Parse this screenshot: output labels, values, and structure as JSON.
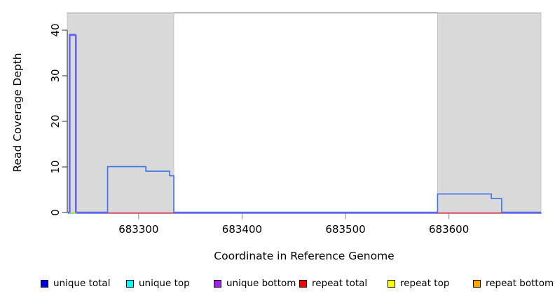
{
  "chart_data": {
    "type": "line",
    "title": "",
    "xlabel": "Coordinate in Reference Genome",
    "ylabel": "Read Coverage Depth",
    "xlim": [
      683231,
      683689
    ],
    "ylim": [
      0,
      44
    ],
    "xticks": [
      683300,
      683400,
      683500,
      683600
    ],
    "yticks": [
      0,
      10,
      20,
      30,
      40
    ],
    "grid": false,
    "legend_position": "bottom",
    "shaded_regions": [
      {
        "x0": 683231,
        "x1": 683334,
        "fill": "#d9d9d9"
      },
      {
        "x0": 683589,
        "x1": 683689,
        "fill": "#d9d9d9"
      }
    ],
    "plot_box_top_segment": {
      "x0": 683334,
      "x1": 683589,
      "color": "#7a7a7a"
    },
    "series": [
      {
        "name": "unique total",
        "color": "#3c74e4",
        "points": [
          [
            683231,
            0
          ],
          [
            683233,
            0
          ],
          [
            683233,
            39
          ],
          [
            683239,
            39
          ],
          [
            683239,
            0
          ],
          [
            683270,
            0
          ],
          [
            683270,
            10
          ],
          [
            683307,
            10
          ],
          [
            683307,
            9
          ],
          [
            683330,
            9
          ],
          [
            683330,
            8
          ],
          [
            683334,
            8
          ],
          [
            683334,
            0
          ],
          [
            683589,
            0
          ],
          [
            683589,
            4
          ],
          [
            683641,
            4
          ],
          [
            683641,
            3
          ],
          [
            683651,
            3
          ],
          [
            683651,
            0
          ],
          [
            683689,
            0
          ]
        ]
      },
      {
        "name": "unique bottom",
        "color": "#7a5cf0",
        "points": [
          [
            683231,
            0
          ],
          [
            683233,
            0
          ],
          [
            683233,
            39
          ],
          [
            683239,
            39
          ],
          [
            683239,
            0
          ],
          [
            683689,
            0
          ]
        ]
      },
      {
        "name": "repeat total",
        "color": "#e84545",
        "segments": [
          [
            [
              683270,
              0
            ],
            [
              683334,
              0
            ]
          ],
          [
            [
              683589,
              0
            ],
            [
              683651,
              0
            ]
          ]
        ]
      },
      {
        "name": "unique top",
        "color": "#00e0e0",
        "segments": [
          [
            [
              683233,
              0
            ],
            [
              683240,
              0
            ]
          ]
        ]
      },
      {
        "name": "repeat top",
        "color": "#ffff00",
        "opacity": 0.55,
        "segments": [
          [
            [
              683233,
              0
            ],
            [
              683240,
              0
            ]
          ]
        ]
      },
      {
        "name": "repeat bottom",
        "color": "#ffa500",
        "segments": []
      }
    ],
    "legend": [
      {
        "label": "unique total",
        "color": "#0000ee"
      },
      {
        "label": "unique top",
        "color": "#00ffff"
      },
      {
        "label": "unique bottom",
        "color": "#a020f0"
      },
      {
        "label": "repeat total",
        "color": "#ff0000"
      },
      {
        "label": "repeat top",
        "color": "#ffff00"
      },
      {
        "label": "repeat bottom",
        "color": "#ffa500"
      }
    ]
  }
}
